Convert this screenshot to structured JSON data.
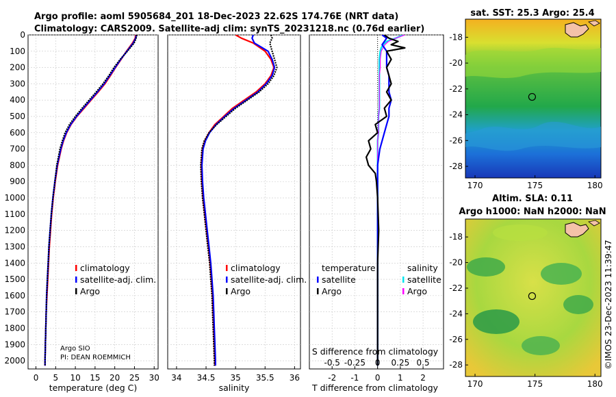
{
  "title_line1": "Argo profile: aoml 5905684_201 18-Dec-2023 22.62S 174.76E (NRT data)",
  "title_line2": "Climatology: CARS2009. Satellite-adj clim: synTS_20231218.nc (0.76d earlier)",
  "annotations": {
    "institution": "Argo SIO",
    "pi": "PI: DEAN ROEMMICH",
    "stamp": "©IMOS 23-Dec-2023 11:39:47"
  },
  "colors": {
    "climatology": "#ff0000",
    "satellite": "#0000ff",
    "argo": "#000000",
    "s_satellite": "#00e5ee",
    "s_argo": "#ff00ff"
  },
  "depth_axis": {
    "range": [
      0,
      2050
    ],
    "ticks": [
      0,
      100,
      200,
      300,
      400,
      500,
      600,
      700,
      800,
      900,
      1000,
      1100,
      1200,
      1300,
      1400,
      1500,
      1600,
      1700,
      1800,
      1900,
      2000
    ]
  },
  "chart_data": [
    {
      "type": "line",
      "panel": "temperature",
      "xlabel": "temperature (deg C)",
      "xlim": [
        -2,
        31
      ],
      "xticks": [
        0,
        5,
        10,
        15,
        20,
        25,
        30
      ],
      "legend": [
        "climatology",
        "satellite-adj. clim.",
        "Argo"
      ],
      "depth": [
        0,
        20,
        50,
        100,
        150,
        200,
        250,
        300,
        350,
        400,
        450,
        500,
        550,
        600,
        650,
        700,
        800,
        900,
        1000,
        1100,
        1200,
        1300,
        1400,
        1500,
        1600,
        1700,
        1800,
        1900,
        2000,
        2030
      ],
      "series": [
        {
          "name": "climatology",
          "values": [
            25.3,
            25.2,
            24.5,
            23.0,
            21.6,
            20.2,
            18.9,
            17.5,
            15.8,
            14.0,
            12.2,
            10.4,
            8.9,
            7.8,
            7.0,
            6.4,
            5.5,
            4.9,
            4.4,
            4.0,
            3.7,
            3.4,
            3.2,
            3.0,
            2.8,
            2.6,
            2.5,
            2.4,
            2.3,
            2.3
          ]
        },
        {
          "name": "satellite-adj. clim.",
          "values": [
            25.5,
            25.3,
            24.7,
            23.1,
            21.5,
            20.1,
            18.7,
            17.3,
            15.6,
            13.8,
            12.0,
            10.3,
            8.8,
            7.7,
            6.9,
            6.3,
            5.4,
            4.8,
            4.3,
            3.9,
            3.6,
            3.3,
            3.1,
            2.9,
            2.7,
            2.6,
            2.5,
            2.4,
            2.3,
            2.3
          ]
        },
        {
          "name": "Argo",
          "values": [
            25.6,
            25.4,
            24.9,
            23.2,
            21.4,
            19.8,
            18.5,
            17.0,
            15.3,
            13.5,
            11.7,
            10.0,
            8.5,
            7.4,
            6.7,
            6.1,
            5.3,
            4.8,
            4.3,
            3.9,
            3.6,
            3.3,
            3.1,
            2.9,
            2.7,
            2.6,
            2.5,
            2.4,
            2.3,
            2.3
          ]
        }
      ]
    },
    {
      "type": "line",
      "panel": "salinity",
      "xlabel": "salinity",
      "xlim": [
        33.85,
        36.1
      ],
      "xticks": [
        34,
        34.5,
        35,
        35.5,
        36
      ],
      "legend": [
        "climatology",
        "satellite-adj. clim.",
        "Argo"
      ],
      "depth": [
        0,
        20,
        50,
        100,
        150,
        200,
        250,
        300,
        350,
        400,
        450,
        500,
        550,
        600,
        650,
        700,
        800,
        900,
        1000,
        1100,
        1200,
        1300,
        1400,
        1500,
        1600,
        1700,
        1800,
        1900,
        2000,
        2030
      ],
      "series": [
        {
          "name": "climatology",
          "values": [
            35.0,
            35.1,
            35.3,
            35.5,
            35.6,
            35.65,
            35.6,
            35.5,
            35.35,
            35.15,
            34.95,
            34.8,
            34.65,
            34.55,
            34.48,
            34.44,
            34.42,
            34.43,
            34.45,
            34.48,
            34.51,
            34.54,
            34.57,
            34.59,
            34.61,
            34.62,
            34.63,
            34.64,
            34.65,
            34.65
          ]
        },
        {
          "name": "satellite-adj. clim.",
          "values": [
            35.3,
            35.28,
            35.32,
            35.55,
            35.62,
            35.66,
            35.62,
            35.52,
            35.38,
            35.18,
            34.98,
            34.82,
            34.67,
            34.56,
            34.49,
            34.45,
            34.43,
            34.44,
            34.46,
            34.49,
            34.52,
            34.55,
            34.58,
            34.6,
            34.62,
            34.63,
            34.64,
            34.65,
            34.66,
            34.66
          ]
        },
        {
          "name": "Argo",
          "values": [
            35.6,
            35.62,
            35.58,
            35.62,
            35.66,
            35.7,
            35.65,
            35.55,
            35.4,
            35.2,
            35.0,
            34.84,
            34.68,
            34.55,
            34.47,
            34.43,
            34.41,
            34.42,
            34.44,
            34.47,
            34.5,
            34.53,
            34.56,
            34.58,
            34.6,
            34.61,
            34.62,
            34.63,
            34.64,
            34.64
          ]
        }
      ]
    },
    {
      "type": "line",
      "panel": "difference",
      "xlabel_t": "T difference from climatology",
      "xlabel_s": "S difference from climatology",
      "xlim_t": [
        -3,
        2.9
      ],
      "xticks_t": [
        -2,
        -1,
        0,
        1,
        2
      ],
      "xlim_s": [
        -0.75,
        0.725
      ],
      "xticks_s": [
        -0.5,
        -0.25,
        0,
        0.25,
        0.5
      ],
      "xticklabels_s": [
        "-0.5",
        "-0.25",
        "0",
        "0.25",
        "0.5"
      ],
      "legend_t_title": "temperature",
      "legend_t": [
        "satellite",
        "Argo"
      ],
      "legend_s_title": "salinity",
      "legend_s": [
        "satellite",
        "Argo"
      ],
      "depth": [
        0,
        20,
        40,
        60,
        80,
        100,
        150,
        200,
        250,
        300,
        350,
        400,
        450,
        500,
        550,
        600,
        650,
        700,
        750,
        800,
        850,
        900,
        1000,
        1200,
        1400,
        1600,
        1800,
        2000,
        2030
      ],
      "series": [
        {
          "name": "T satellite",
          "values": [
            0.2,
            0.4,
            0.3,
            0.2,
            0.3,
            0.4,
            0.4,
            0.4,
            0.5,
            0.5,
            0.5,
            0.6,
            0.5,
            0.5,
            0.4,
            0.3,
            0.2,
            0.1,
            0.05,
            0.0,
            0.0,
            0.0,
            0.0,
            0.0,
            0.0,
            0.0,
            0.0,
            0.0,
            0.0
          ]
        },
        {
          "name": "T Argo",
          "values": [
            0.3,
            0.5,
            0.9,
            0.6,
            1.2,
            0.4,
            0.6,
            0.4,
            0.5,
            0.6,
            0.4,
            0.6,
            0.3,
            0.4,
            -0.1,
            0.0,
            -0.4,
            -0.3,
            -0.5,
            -0.4,
            -0.1,
            -0.05,
            0.0,
            0.05,
            0.0,
            0.0,
            0.0,
            0.0,
            0.0
          ]
        },
        {
          "name": "S satellite",
          "values": [
            0.28,
            0.2,
            0.1,
            0.06,
            0.04,
            0.03,
            0.02,
            0.02,
            0.02,
            0.02,
            0.02,
            0.02,
            0.02,
            0.01,
            0.01,
            0.01,
            0.0,
            0.0,
            0.0,
            0.0,
            0.0,
            0.0,
            0.0,
            0.0,
            0.0,
            0.0,
            0.0,
            0.0,
            0.0
          ]
        },
        {
          "name": "S Argo",
          "values": [
            0.3,
            0.2,
            0.12,
            0.08,
            0.06,
            0.04,
            0.03,
            0.03,
            0.02,
            0.02,
            0.02,
            0.02,
            0.02,
            0.01,
            0.01,
            0.01,
            0.0,
            0.0,
            0.0,
            0.0,
            0.0,
            0.0,
            0.0,
            0.0,
            0.0,
            0.0,
            0.0,
            0.0,
            0.0
          ]
        }
      ]
    }
  ],
  "maps": {
    "sst": {
      "title": "sat. SST: 25.3 Argo: 25.4",
      "lon_range": [
        169.2,
        180.5
      ],
      "lat_range": [
        -28.9,
        -16.6
      ],
      "lon_ticks": [
        170,
        175,
        180
      ],
      "lat_ticks": [
        -18,
        -20,
        -22,
        -24,
        -26,
        -28
      ],
      "profile_lon": 174.76,
      "profile_lat": -22.62
    },
    "sla": {
      "title_line1": "Altim. SLA: 0.11",
      "title_line2": "Argo h1000: NaN h2000: NaN",
      "lon_range": [
        169.2,
        180.5
      ],
      "lat_range": [
        -28.9,
        -16.6
      ],
      "lon_ticks": [
        170,
        175,
        180
      ],
      "lat_ticks": [
        -18,
        -20,
        -22,
        -24,
        -26,
        -28
      ],
      "profile_lon": 174.76,
      "profile_lat": -22.62
    }
  }
}
